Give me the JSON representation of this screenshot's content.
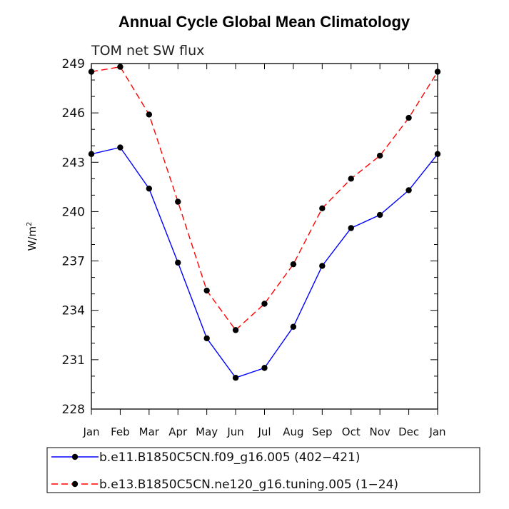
{
  "chart_data": {
    "type": "line",
    "title": "Annual Cycle Global Mean Climatology",
    "subtitle": "TOM net SW flux",
    "ylabel_base": "W/m",
    "ylabel_sup": "2",
    "xlabel": "",
    "categories": [
      "Jan",
      "Feb",
      "Mar",
      "Apr",
      "May",
      "Jun",
      "Jul",
      "Aug",
      "Sep",
      "Oct",
      "Nov",
      "Dec",
      "Jan"
    ],
    "ylim": [
      228,
      249
    ],
    "yticks": [
      228,
      231,
      234,
      237,
      240,
      243,
      246,
      249
    ],
    "grid": false,
    "legend_position": "bottom",
    "series": [
      {
        "name": "b.e11.B1850C5CN.f09_g16.005 (402−421)",
        "color": "#0000ff",
        "dash": "solid",
        "values": [
          243.5,
          243.9,
          241.4,
          236.9,
          232.3,
          229.9,
          230.5,
          233.0,
          236.7,
          239.0,
          239.8,
          241.3,
          243.5
        ]
      },
      {
        "name": "b.e13.B1850C5CN.ne120_g16.tuning.005 (1−24)",
        "color": "#ff0000",
        "dash": "dashed",
        "values": [
          248.5,
          248.8,
          245.9,
          240.6,
          235.2,
          232.8,
          234.4,
          236.8,
          240.2,
          242.0,
          243.4,
          245.7,
          248.5
        ]
      }
    ]
  }
}
